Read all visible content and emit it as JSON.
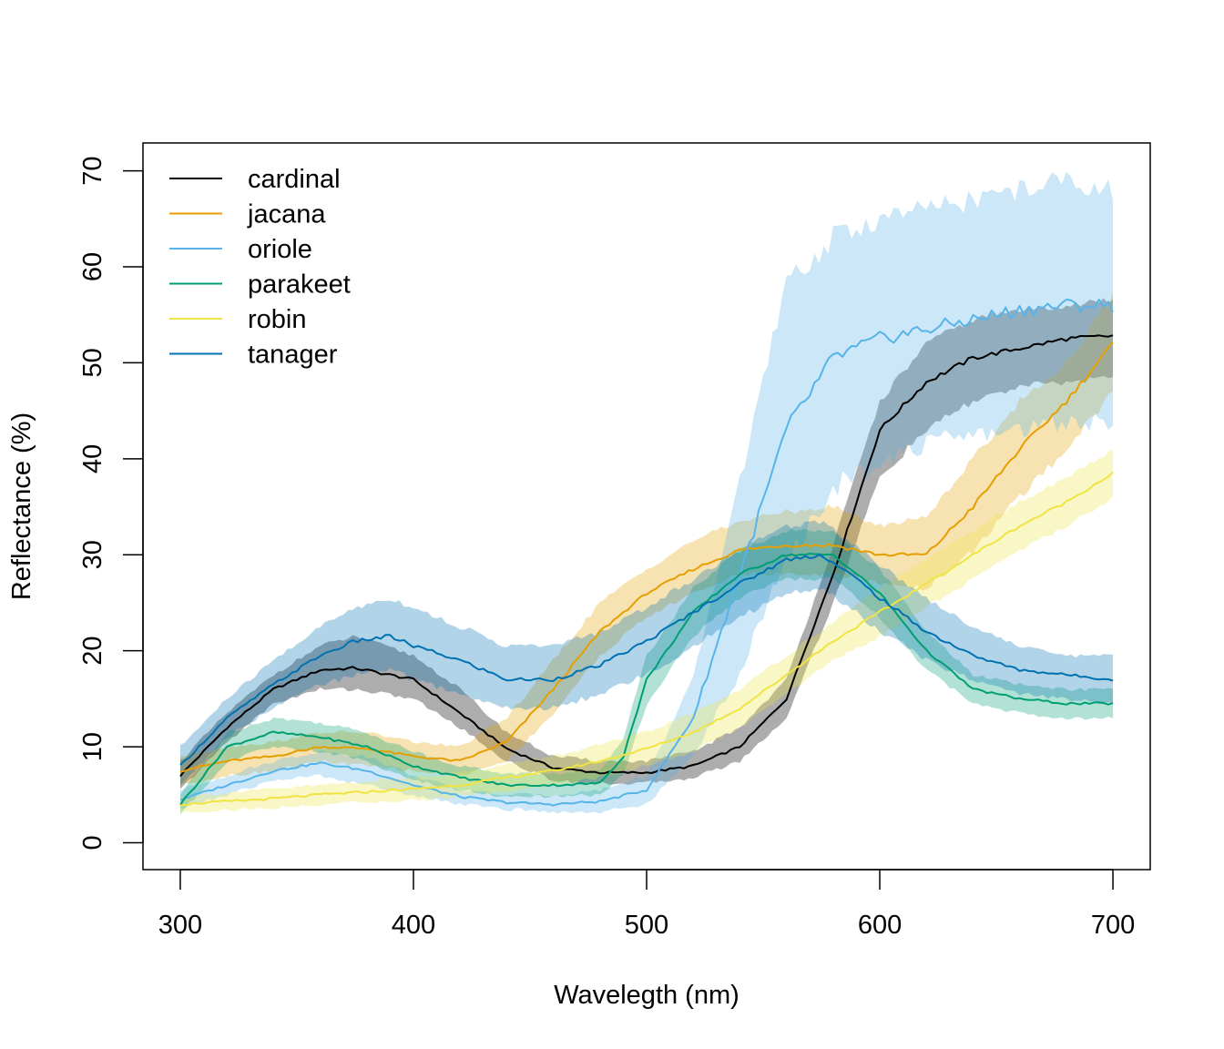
{
  "chart_data": {
    "type": "line",
    "xlabel": "Wavelegth (nm)",
    "ylabel": "Reflectance (%)",
    "xlim": [
      284,
      716
    ],
    "ylim": [
      -2.8,
      72.9
    ],
    "xticks": [
      300,
      400,
      500,
      600,
      700
    ],
    "yticks": [
      0,
      10,
      20,
      30,
      40,
      50,
      60,
      70
    ],
    "grid": false,
    "legend_position": "top-left",
    "bands": "shaded band around each line (mean ± spread)",
    "series": [
      {
        "name": "cardinal",
        "color": "#000000",
        "x": [
          300,
          320,
          340,
          360,
          375,
          400,
          420,
          440,
          460,
          480,
          500,
          520,
          540,
          560,
          580,
          600,
          620,
          640,
          660,
          680,
          700
        ],
        "y": [
          7,
          12,
          16,
          18,
          18.2,
          17,
          13.5,
          9.8,
          7.8,
          7.3,
          7.3,
          8.0,
          10,
          15,
          28,
          43,
          48,
          50.5,
          51.5,
          52.5,
          52.8
        ],
        "upper": [
          8.5,
          13.5,
          17.5,
          20.5,
          21.5,
          19.5,
          16,
          11.5,
          9,
          8.5,
          8.5,
          9.5,
          12,
          17,
          31,
          46,
          52,
          54.5,
          55.5,
          56,
          56.5
        ],
        "lower": [
          5.5,
          10.5,
          14.5,
          16,
          16,
          15,
          12,
          8.5,
          6.5,
          6.2,
          6.2,
          6.8,
          8.5,
          13,
          25,
          38,
          43,
          46,
          47.5,
          48,
          48.5
        ]
      },
      {
        "name": "jacana",
        "color": "#E69F00",
        "x": [
          300,
          320,
          340,
          360,
          380,
          400,
          420,
          440,
          460,
          480,
          500,
          520,
          540,
          560,
          580,
          600,
          620,
          640,
          660,
          680,
          700
        ],
        "y": [
          7.5,
          8.5,
          9,
          10,
          9.8,
          9,
          8.5,
          10.5,
          16,
          22,
          26,
          28.5,
          30.5,
          31,
          31,
          30,
          30,
          35,
          41,
          46,
          52
        ],
        "upper": [
          9,
          10,
          10.5,
          11.5,
          11.5,
          10.5,
          10,
          13,
          19,
          25,
          28.5,
          31.5,
          33.5,
          34.5,
          35,
          33,
          34,
          40,
          46,
          50,
          57
        ],
        "lower": [
          6,
          7,
          7.5,
          8.5,
          8,
          7.5,
          7,
          8.5,
          13.5,
          19.5,
          23.5,
          26,
          28,
          28,
          28,
          27,
          26.5,
          30.5,
          36,
          41,
          47
        ]
      },
      {
        "name": "oriole",
        "color": "#56B4E9",
        "x": [
          300,
          320,
          340,
          360,
          380,
          400,
          420,
          440,
          460,
          480,
          500,
          520,
          540,
          560,
          580,
          600,
          620,
          640,
          660,
          680,
          700
        ],
        "y": [
          4.5,
          6,
          7.5,
          8.3,
          7.5,
          6,
          4.8,
          4.2,
          4,
          4.3,
          5.5,
          13,
          28,
          43,
          50.5,
          52.5,
          53.5,
          54.5,
          55.5,
          56,
          56
        ],
        "upper": [
          5.5,
          7,
          8.5,
          9.5,
          9,
          7,
          5.5,
          5,
          5,
          5.5,
          7,
          17,
          38,
          58,
          63,
          65,
          66,
          67,
          68,
          69,
          68
        ],
        "lower": [
          3.5,
          5,
          6.5,
          7,
          6,
          5,
          4,
          3.5,
          3.2,
          3.2,
          4,
          9,
          18,
          29,
          37,
          40,
          41.5,
          42.5,
          43,
          44,
          44
        ]
      },
      {
        "name": "parakeet",
        "color": "#009E73",
        "x": [
          300,
          320,
          340,
          360,
          380,
          400,
          420,
          440,
          460,
          480,
          490,
          500,
          520,
          540,
          560,
          580,
          600,
          620,
          640,
          660,
          680,
          700
        ],
        "y": [
          4,
          10,
          11.5,
          11,
          10,
          8,
          6.8,
          6,
          6,
          6.2,
          9,
          17,
          24,
          28,
          30,
          30,
          26,
          20,
          16,
          15,
          14.5,
          14.5
        ],
        "upper": [
          5,
          11.5,
          13,
          12.5,
          11.5,
          9.5,
          8,
          7.2,
          7.2,
          7.5,
          11,
          19.5,
          26.5,
          30.5,
          32.5,
          32.5,
          28.5,
          22,
          17.5,
          16.5,
          16,
          16
        ],
        "lower": [
          3,
          8.5,
          10,
          9.5,
          8.5,
          6.5,
          5.5,
          4.8,
          4.8,
          5,
          7,
          14.5,
          21.5,
          25.5,
          27.5,
          27.5,
          23.5,
          18,
          14.5,
          13.5,
          13,
          13
        ]
      },
      {
        "name": "robin",
        "color": "#F0E442",
        "x": [
          300,
          320,
          340,
          360,
          380,
          400,
          420,
          440,
          460,
          480,
          500,
          520,
          540,
          560,
          580,
          600,
          620,
          640,
          660,
          680,
          700
        ],
        "y": [
          4,
          4.3,
          4.6,
          5,
          5.3,
          5.6,
          6,
          6.8,
          7.5,
          8.5,
          9.8,
          11.5,
          14,
          17.5,
          21,
          24,
          27,
          30,
          33,
          35.5,
          38.5
        ],
        "upper": [
          4.8,
          5.2,
          5.6,
          6,
          6.4,
          6.8,
          7.3,
          8.2,
          9,
          10.2,
          11.5,
          13.5,
          16,
          19.5,
          23,
          26.5,
          29.5,
          32.5,
          35.5,
          38,
          41
        ],
        "lower": [
          3.2,
          3.4,
          3.6,
          4,
          4.2,
          4.4,
          4.8,
          5.4,
          6,
          6.8,
          8,
          9.5,
          12,
          15.5,
          19,
          21.5,
          24.5,
          27.5,
          30.5,
          33,
          36
        ]
      },
      {
        "name": "tanager",
        "color": "#0072B2",
        "x": [
          300,
          320,
          340,
          360,
          375,
          390,
          400,
          420,
          440,
          460,
          480,
          500,
          520,
          540,
          560,
          575,
          590,
          600,
          620,
          640,
          660,
          680,
          700
        ],
        "y": [
          8,
          13,
          16.5,
          19.5,
          21,
          21.5,
          20.5,
          19,
          17,
          17,
          18.5,
          21,
          24,
          27,
          29.5,
          30,
          27.5,
          25.5,
          22,
          19.5,
          18,
          17.5,
          17
        ],
        "upper": [
          10,
          15,
          19,
          22.5,
          24.5,
          25.5,
          24.5,
          22.5,
          20.5,
          20.5,
          22,
          24.5,
          27.5,
          30.5,
          33,
          33.5,
          31,
          29,
          25.5,
          22.5,
          20.5,
          19.5,
          19.5
        ],
        "lower": [
          6,
          11,
          14,
          16.5,
          17.5,
          18,
          17,
          15.5,
          14,
          14,
          15.5,
          17.5,
          20.5,
          23.5,
          26,
          26.5,
          24,
          22,
          19,
          17,
          15.5,
          15,
          14.5
        ]
      }
    ]
  }
}
